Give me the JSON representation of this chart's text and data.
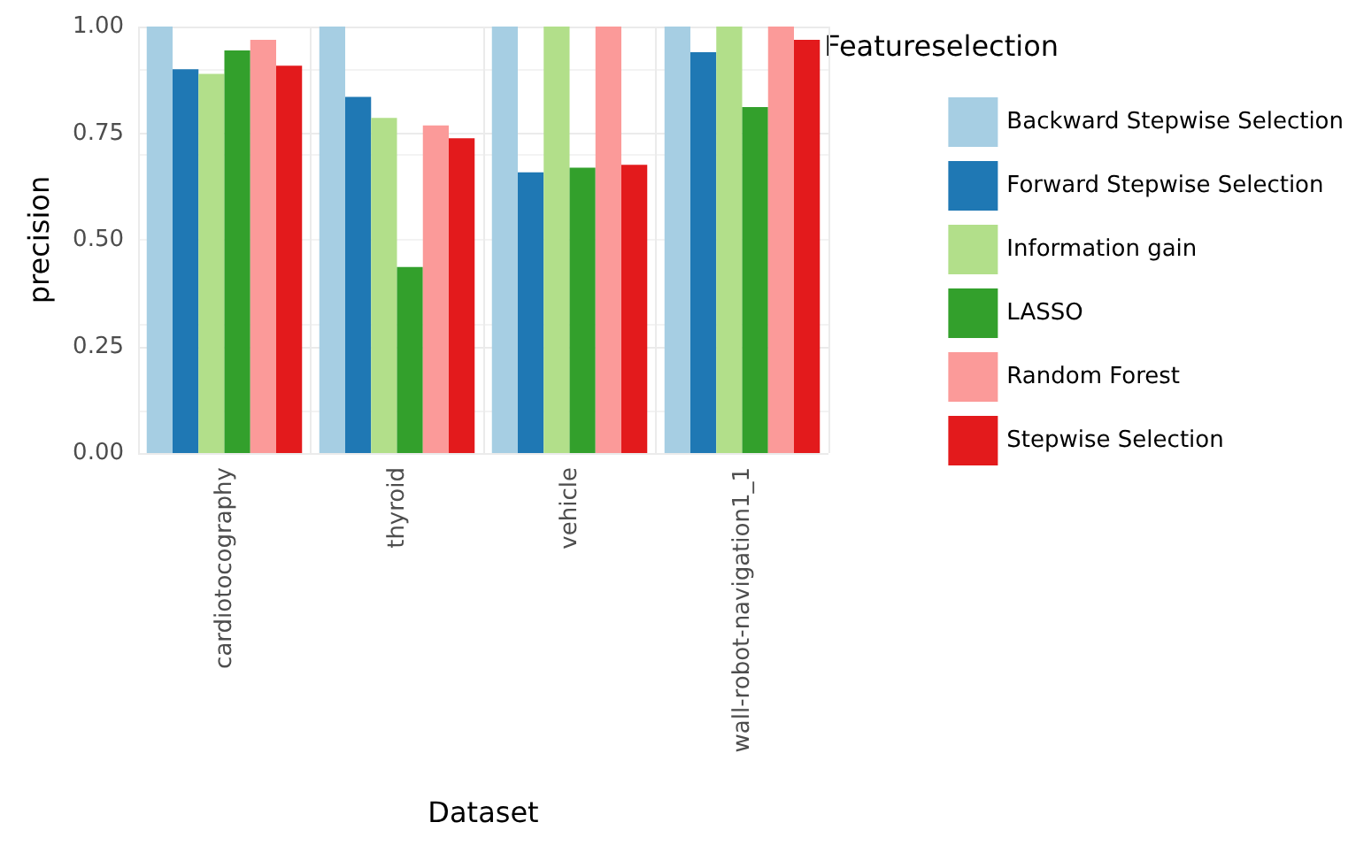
{
  "chart_data": {
    "type": "bar",
    "xlabel": "Dataset",
    "ylabel": "precision",
    "legend_title": "Featureselection",
    "categories": [
      "cardiotocography",
      "thyroid",
      "vehicle",
      "wall-robot-navigation1_1"
    ],
    "series": [
      {
        "name": "Backward Stepwise Selection",
        "color": "#a6cee3",
        "values": [
          1.0,
          1.0,
          1.0,
          1.0
        ]
      },
      {
        "name": "Forward Stepwise Selection",
        "color": "#1f78b4",
        "values": [
          0.9,
          0.835,
          0.658,
          0.94
        ]
      },
      {
        "name": "Information gain",
        "color": "#b2df8a",
        "values": [
          0.889,
          0.786,
          1.0,
          1.0
        ]
      },
      {
        "name": "LASSO",
        "color": "#33a02c",
        "values": [
          0.944,
          0.436,
          0.669,
          0.811
        ]
      },
      {
        "name": "Random Forest",
        "color": "#fb9a99",
        "values": [
          0.969,
          0.768,
          1.0,
          1.0
        ]
      },
      {
        "name": "Stepwise Selection",
        "color": "#e31a1c",
        "values": [
          0.908,
          0.738,
          0.676,
          0.969
        ]
      }
    ],
    "ylim": [
      0,
      1.0
    ],
    "yticks": [
      {
        "value": 0,
        "label": "0.00"
      },
      {
        "value": 0.25,
        "label": "0.25"
      },
      {
        "value": 0.5,
        "label": "0.50"
      },
      {
        "value": 0.75,
        "label": "0.75"
      },
      {
        "value": 1.0,
        "label": "1.00"
      }
    ],
    "grid": true,
    "legend": "right"
  }
}
